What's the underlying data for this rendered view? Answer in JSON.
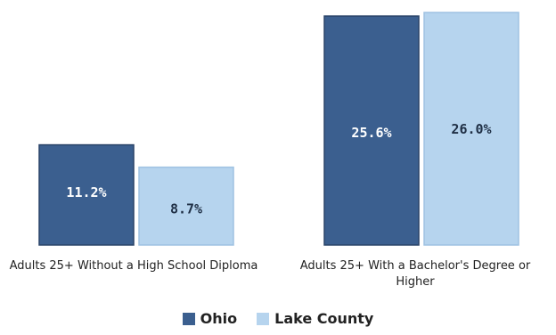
{
  "chart_data": {
    "type": "bar",
    "categories": [
      "Adults 25+ Without a High School Diploma",
      "Adults 25+ With a Bachelor's Degree or Higher"
    ],
    "series": [
      {
        "name": "Ohio",
        "values": [
          11.2,
          25.6
        ],
        "labels": [
          "11.2%",
          "25.6%"
        ],
        "color": "#3b5f8f"
      },
      {
        "name": "Lake County",
        "values": [
          8.7,
          26.0
        ],
        "labels": [
          "8.7%",
          "26.0%"
        ],
        "color": "#b6d4ee"
      }
    ],
    "unit": "%",
    "ylim": [
      0,
      26.0
    ],
    "grid": false,
    "legend_position": "bottom"
  }
}
